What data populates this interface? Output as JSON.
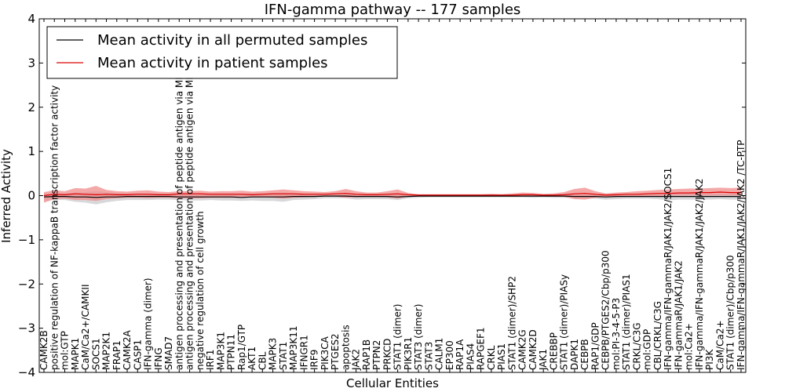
{
  "chart_data": {
    "type": "line",
    "title": "IFN-gamma pathway -- 177 samples",
    "xlabel": "Cellular Entities",
    "ylabel": "Inferred Activity",
    "ylim": [
      -4,
      4
    ],
    "yticks": [
      -4,
      -3,
      -2,
      -1,
      0,
      1,
      2,
      3,
      4
    ],
    "legend_position": "top-left",
    "categories": [
      "CAMK2B",
      "positive regulation of NF-kappaB transcription factor activity",
      "mol:GTP",
      "MAPK1",
      "CaM/Ca2+/CAMKII",
      "SOCS1",
      "MAP2K1",
      "FRAP1",
      "CAMK2A",
      "CASP1",
      "IFN-gamma (dimer)",
      "IFNG",
      "SMAD7",
      "antigen processing and presentation of peptide antigen via MHC class I",
      "antigen processing and presentation of peptide antigen via MHC class II",
      "negative regulation of cell growth",
      "IRF1",
      "MAP3K1",
      "PTPN11",
      "Rap1/GTP",
      "AKT1",
      "CBL",
      "MAPK3",
      "STAT1",
      "MAP3K11",
      "IFNGR1",
      "IRF9",
      "PIK3CA",
      "PTGES2",
      "apoptosis",
      "JAK2",
      "RAP1B",
      "PTPN2",
      "PRKCD",
      "STAT1 (dimer)",
      "PIK3R1",
      "STAT3 (dimer)",
      "STAT3",
      "CALM1",
      "EP300",
      "RAP1A",
      "PIAS4",
      "RAPGEF1",
      "CRKL",
      "PIAS1",
      "STAT1 (dimer)/SHP2",
      "CAMK2G",
      "CAMK2D",
      "JAK1",
      "CREBBP",
      "STAT1 (dimer)/PIASy",
      "DAPK1",
      "CEBPB",
      "RAP1/GDP",
      "CEBPB/PTGES2/Cbp/p300",
      "mol:PI-3-4-5-P3",
      "STAT1 (dimer)/PIAS1",
      "CRKL/C3G",
      "mol:GDP",
      "CBL/CRKL/C3G",
      "IFN-gamma/IFN-gammaR/JAK1/JAK2/SOCS1",
      "IFN-gammaR/JAK1/JAK2",
      "mol:Ca2+",
      "IFN-gamma/IFN-gammaR/JAK1/JAK2/JAK2",
      "PI3K",
      "CaM/Ca2+",
      "STAT1 (dimer)/Cbp/p300",
      "IFN-gamma/IFN-gammaR/JAK1/JAK2/JAK2 /TC-PTP"
    ],
    "series": [
      {
        "name": "Mean activity in all permuted samples",
        "color": "#000000",
        "band_color": "#c8c8cc",
        "values": [
          -0.03,
          -0.02,
          -0.02,
          -0.03,
          -0.03,
          -0.04,
          -0.03,
          -0.03,
          -0.02,
          -0.02,
          -0.02,
          -0.02,
          -0.02,
          -0.03,
          -0.03,
          -0.03,
          -0.03,
          -0.03,
          -0.03,
          -0.04,
          -0.03,
          -0.03,
          -0.03,
          -0.03,
          -0.02,
          -0.02,
          -0.02,
          -0.01,
          -0.01,
          -0.01,
          -0.02,
          -0.02,
          -0.02,
          -0.02,
          -0.03,
          -0.02,
          -0.01,
          -0.01,
          -0.01,
          -0.01,
          -0.01,
          -0.01,
          -0.01,
          -0.01,
          -0.01,
          -0.01,
          -0.01,
          -0.01,
          -0.01,
          -0.01,
          -0.01,
          -0.02,
          -0.02,
          -0.02,
          -0.03,
          -0.02,
          -0.02,
          -0.02,
          -0.02,
          -0.02,
          -0.02,
          -0.02,
          -0.02,
          -0.02,
          -0.02,
          -0.02,
          -0.02,
          -0.02
        ],
        "lower": [
          -0.12,
          -0.1,
          -0.1,
          -0.14,
          -0.16,
          -0.2,
          -0.15,
          -0.12,
          -0.1,
          -0.1,
          -0.1,
          -0.09,
          -0.09,
          -0.1,
          -0.11,
          -0.11,
          -0.1,
          -0.11,
          -0.11,
          -0.12,
          -0.11,
          -0.12,
          -0.12,
          -0.14,
          -0.1,
          -0.09,
          -0.08,
          -0.06,
          -0.06,
          -0.06,
          -0.09,
          -0.08,
          -0.08,
          -0.08,
          -0.1,
          -0.06,
          -0.05,
          -0.04,
          -0.04,
          -0.04,
          -0.04,
          -0.04,
          -0.04,
          -0.04,
          -0.04,
          -0.04,
          -0.04,
          -0.05,
          -0.04,
          -0.05,
          -0.05,
          -0.06,
          -0.06,
          -0.07,
          -0.09,
          -0.08,
          -0.07,
          -0.07,
          -0.07,
          -0.08,
          -0.11,
          -0.09,
          -0.09,
          -0.09,
          -0.09,
          -0.08,
          -0.09,
          -0.09
        ],
        "upper": [
          0.06,
          0.05,
          0.05,
          0.07,
          0.08,
          0.1,
          0.08,
          0.06,
          0.05,
          0.05,
          0.05,
          0.05,
          0.04,
          0.05,
          0.05,
          0.05,
          0.05,
          0.05,
          0.05,
          0.05,
          0.05,
          0.05,
          0.06,
          0.07,
          0.05,
          0.04,
          0.04,
          0.03,
          0.03,
          0.03,
          0.04,
          0.04,
          0.04,
          0.04,
          0.04,
          0.03,
          0.02,
          0.02,
          0.02,
          0.02,
          0.02,
          0.02,
          0.02,
          0.02,
          0.02,
          0.02,
          0.02,
          0.03,
          0.02,
          0.03,
          0.03,
          0.03,
          0.03,
          0.03,
          0.04,
          0.04,
          0.03,
          0.03,
          0.03,
          0.04,
          0.06,
          0.05,
          0.05,
          0.05,
          0.05,
          0.04,
          0.05,
          0.05
        ]
      },
      {
        "name": "Mean activity in patient samples",
        "color": "#dd0000",
        "band_color": "#f08c8c",
        "values": [
          0.0,
          0.03,
          0.02,
          0.04,
          0.03,
          0.02,
          0.03,
          0.02,
          0.02,
          0.03,
          0.03,
          0.02,
          0.02,
          0.04,
          0.04,
          0.04,
          0.03,
          0.03,
          0.03,
          0.03,
          0.02,
          0.03,
          0.04,
          0.04,
          0.04,
          0.03,
          0.03,
          0.03,
          0.04,
          0.05,
          0.03,
          0.02,
          0.02,
          0.03,
          0.04,
          0.02,
          0.01,
          0.01,
          0.01,
          0.01,
          0.01,
          0.01,
          0.01,
          0.01,
          0.01,
          0.01,
          0.02,
          0.02,
          0.01,
          0.01,
          0.02,
          0.04,
          0.05,
          0.03,
          0.01,
          0.02,
          0.03,
          0.03,
          0.04,
          0.05,
          0.05,
          0.06,
          0.06,
          0.07,
          0.07,
          0.08,
          0.07,
          0.07
        ],
        "lower": [
          -0.16,
          -0.08,
          -0.07,
          -0.1,
          -0.1,
          -0.12,
          -0.08,
          -0.06,
          -0.05,
          -0.05,
          -0.06,
          -0.05,
          -0.05,
          -0.06,
          -0.06,
          -0.06,
          -0.05,
          -0.05,
          -0.05,
          -0.05,
          -0.04,
          -0.04,
          -0.05,
          -0.07,
          -0.05,
          -0.04,
          -0.03,
          -0.02,
          -0.02,
          -0.05,
          -0.04,
          -0.03,
          -0.03,
          -0.04,
          -0.07,
          -0.02,
          -0.01,
          -0.01,
          -0.01,
          -0.01,
          -0.01,
          -0.01,
          -0.01,
          -0.01,
          -0.01,
          -0.02,
          -0.02,
          -0.02,
          -0.02,
          -0.02,
          -0.03,
          -0.08,
          -0.09,
          -0.05,
          -0.03,
          -0.03,
          -0.02,
          -0.02,
          -0.02,
          -0.01,
          0.0,
          0.0,
          0.0,
          0.0,
          0.0,
          0.0,
          0.0,
          0.0
        ],
        "upper": [
          0.08,
          0.12,
          0.1,
          0.17,
          0.16,
          0.22,
          0.13,
          0.1,
          0.09,
          0.11,
          0.12,
          0.09,
          0.08,
          0.1,
          0.1,
          0.11,
          0.09,
          0.1,
          0.1,
          0.11,
          0.09,
          0.1,
          0.12,
          0.14,
          0.12,
          0.1,
          0.09,
          0.08,
          0.1,
          0.15,
          0.1,
          0.07,
          0.07,
          0.1,
          0.14,
          0.06,
          0.03,
          0.03,
          0.03,
          0.03,
          0.03,
          0.03,
          0.03,
          0.04,
          0.03,
          0.05,
          0.07,
          0.06,
          0.04,
          0.05,
          0.08,
          0.15,
          0.18,
          0.1,
          0.05,
          0.07,
          0.08,
          0.1,
          0.11,
          0.13,
          0.14,
          0.15,
          0.16,
          0.16,
          0.17,
          0.18,
          0.17,
          0.18
        ]
      }
    ]
  }
}
